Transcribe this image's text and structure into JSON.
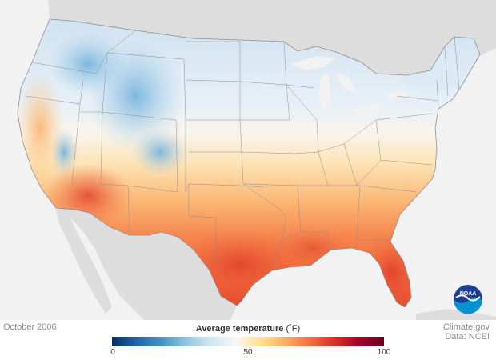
{
  "map": {
    "period": "October 2006",
    "variable_title": "Average temperature",
    "unit": "(˚F)",
    "regions_shown": [
      "Contiguous United States",
      "Canada",
      "Mexico",
      "Great Lakes"
    ],
    "palette": [
      "#053061",
      "#2166ac",
      "#4393c3",
      "#92c5de",
      "#d1e5f0",
      "#f7f7f7",
      "#fee090",
      "#fdae61",
      "#f46d43",
      "#d73027",
      "#a50026",
      "#67001f"
    ]
  },
  "legend": {
    "ticks": [
      "0",
      "50",
      "100"
    ],
    "tick_values": [
      0,
      50,
      100
    ],
    "min": 0,
    "max": 100
  },
  "credits": {
    "line1": "Climate.gov",
    "line2": "Data: NCEI"
  },
  "logo": {
    "text": "NOAA",
    "colors": {
      "outer": "#1c3f94",
      "inner": "#0093d0",
      "bird": "#ffffff"
    }
  }
}
